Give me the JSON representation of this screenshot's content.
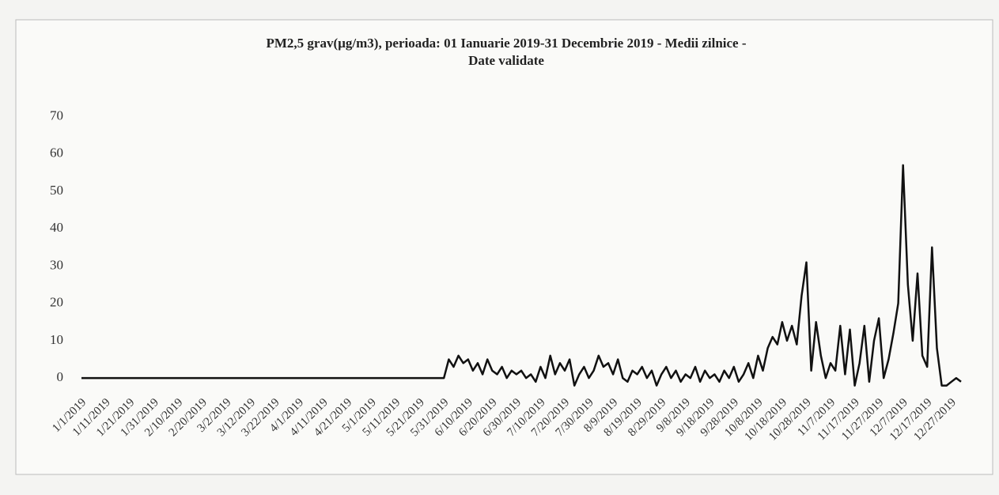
{
  "chart_data": {
    "type": "line",
    "title": "PM2,5 grav(µg/m3), perioada: 01 Ianuarie 2019-31 Decembrie 2019 - Medii zilnice - Date validate",
    "categories": [
      "1/1/2019",
      null,
      null,
      null,
      null,
      "1/11/2019",
      null,
      null,
      null,
      null,
      "1/21/2019",
      null,
      null,
      null,
      null,
      "1/31/2019",
      null,
      null,
      null,
      null,
      "2/10/2019",
      null,
      null,
      null,
      null,
      "2/20/2019",
      null,
      null,
      null,
      null,
      "3/2/2019",
      null,
      null,
      null,
      null,
      "3/12/2019",
      null,
      null,
      null,
      null,
      "3/22/2019",
      null,
      null,
      null,
      null,
      "4/1/2019",
      null,
      null,
      null,
      null,
      "4/11/2019",
      null,
      null,
      null,
      null,
      "4/21/2019",
      null,
      null,
      null,
      null,
      "5/1/2019",
      null,
      null,
      null,
      null,
      "5/11/2019",
      null,
      null,
      null,
      null,
      "5/21/2019",
      null,
      null,
      null,
      null,
      "5/31/2019",
      null,
      null,
      null,
      null,
      "6/10/2019",
      null,
      null,
      null,
      null,
      "6/20/2019",
      null,
      null,
      null,
      null,
      "6/30/2019",
      null,
      null,
      null,
      null,
      "7/10/2019",
      null,
      null,
      null,
      null,
      "7/20/2019",
      null,
      null,
      null,
      null,
      "7/30/2019",
      null,
      null,
      null,
      null,
      "8/9/2019",
      null,
      null,
      null,
      null,
      "8/19/2019",
      null,
      null,
      null,
      null,
      "8/29/2019",
      null,
      null,
      null,
      null,
      "9/8/2019",
      null,
      null,
      null,
      null,
      "9/18/2019",
      null,
      null,
      null,
      null,
      "9/28/2019",
      null,
      null,
      null,
      null,
      "10/8/2019",
      null,
      null,
      null,
      null,
      "10/18/2019",
      null,
      null,
      null,
      null,
      "10/28/2019",
      null,
      null,
      null,
      null,
      "11/7/2019",
      null,
      null,
      null,
      null,
      "11/17/2019",
      null,
      null,
      null,
      null,
      "11/27/2019",
      null,
      null,
      null,
      null,
      "12/7/2019",
      null,
      null,
      null,
      null,
      "12/17/2019",
      null,
      null,
      null,
      null,
      "12/27/2019",
      null,
      null
    ],
    "values": [
      0,
      0,
      0,
      0,
      0,
      0,
      0,
      0,
      0,
      0,
      0,
      0,
      0,
      0,
      0,
      0,
      0,
      0,
      0,
      0,
      0,
      0,
      0,
      0,
      0,
      0,
      0,
      0,
      0,
      0,
      0,
      0,
      0,
      0,
      0,
      0,
      0,
      0,
      0,
      0,
      0,
      0,
      0,
      0,
      0,
      0,
      0,
      0,
      0,
      0,
      0,
      0,
      0,
      0,
      0,
      0,
      0,
      0,
      0,
      0,
      0,
      0,
      0,
      0,
      0,
      0,
      0,
      0,
      0,
      0,
      0,
      0,
      0,
      0,
      0,
      0,
      5,
      3,
      6,
      4,
      5,
      2,
      4,
      1,
      5,
      2,
      1,
      3,
      0,
      2,
      1,
      2,
      0,
      1,
      -1,
      3,
      0,
      6,
      1,
      4,
      2,
      5,
      -2,
      1,
      3,
      0,
      2,
      6,
      3,
      4,
      1,
      5,
      0,
      -1,
      2,
      1,
      3,
      0,
      2,
      -2,
      1,
      3,
      0,
      2,
      -1,
      1,
      0,
      3,
      -1,
      2,
      0,
      1,
      -1,
      2,
      0,
      3,
      -1,
      1,
      4,
      0,
      6,
      2,
      8,
      11,
      9,
      15,
      10,
      14,
      9,
      22,
      31,
      2,
      15,
      6,
      0,
      4,
      2,
      14,
      1,
      13,
      -2,
      4,
      14,
      -1,
      10,
      16,
      0,
      5,
      12,
      20,
      57,
      25,
      10,
      28,
      6,
      3,
      35,
      8,
      -2,
      -2,
      -1,
      0,
      -1
    ],
    "color": "#111111",
    "ylim": [
      -4,
      72
    ],
    "yticks": [
      0,
      10,
      20,
      30,
      40,
      50,
      60,
      70
    ],
    "grid": false
  }
}
